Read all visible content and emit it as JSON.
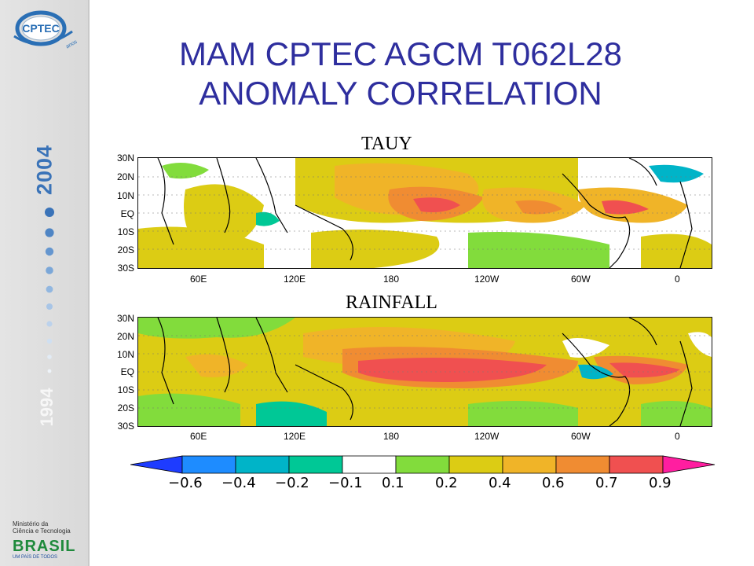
{
  "title": {
    "line1": "MAM CPTEC AGCM T062L28",
    "line2": "ANOMALY CORRELATION"
  },
  "sidebar": {
    "logo_text": "CPTEC",
    "logo_subtext": "anos",
    "year_start": "1994",
    "year_end": "2004",
    "ministry_line1": "Ministério da",
    "ministry_line2": "Ciência e Tecnologia",
    "brasil_text": "BRASIL",
    "brasil_slogan": "UM PAÍS DE TODOS"
  },
  "panels": [
    {
      "label": "TAUY"
    },
    {
      "label": "RAINFALL"
    }
  ],
  "lat_labels": [
    "30N",
    "20N",
    "10N",
    "EQ",
    "10S",
    "20S",
    "30S"
  ],
  "lon_labels": [
    "60E",
    "120E",
    "180",
    "120W",
    "60W",
    "0"
  ],
  "colorbar": {
    "labels": [
      "−0.6",
      "−0.4",
      "−0.2",
      "−0.1",
      "0.1",
      "0.2",
      "0.4",
      "0.6",
      "0.7",
      "0.9"
    ],
    "colors": [
      "#1e3cff",
      "#1e8cff",
      "#00b4c8",
      "#00c896",
      "#ffffff",
      "#82dc3c",
      "#dccc14",
      "#f0b428",
      "#f08c32",
      "#f05050",
      "#ff1ea0"
    ]
  },
  "palette": {
    "title": "#2e2e9e",
    "accent_blue": "#3a73b8"
  }
}
